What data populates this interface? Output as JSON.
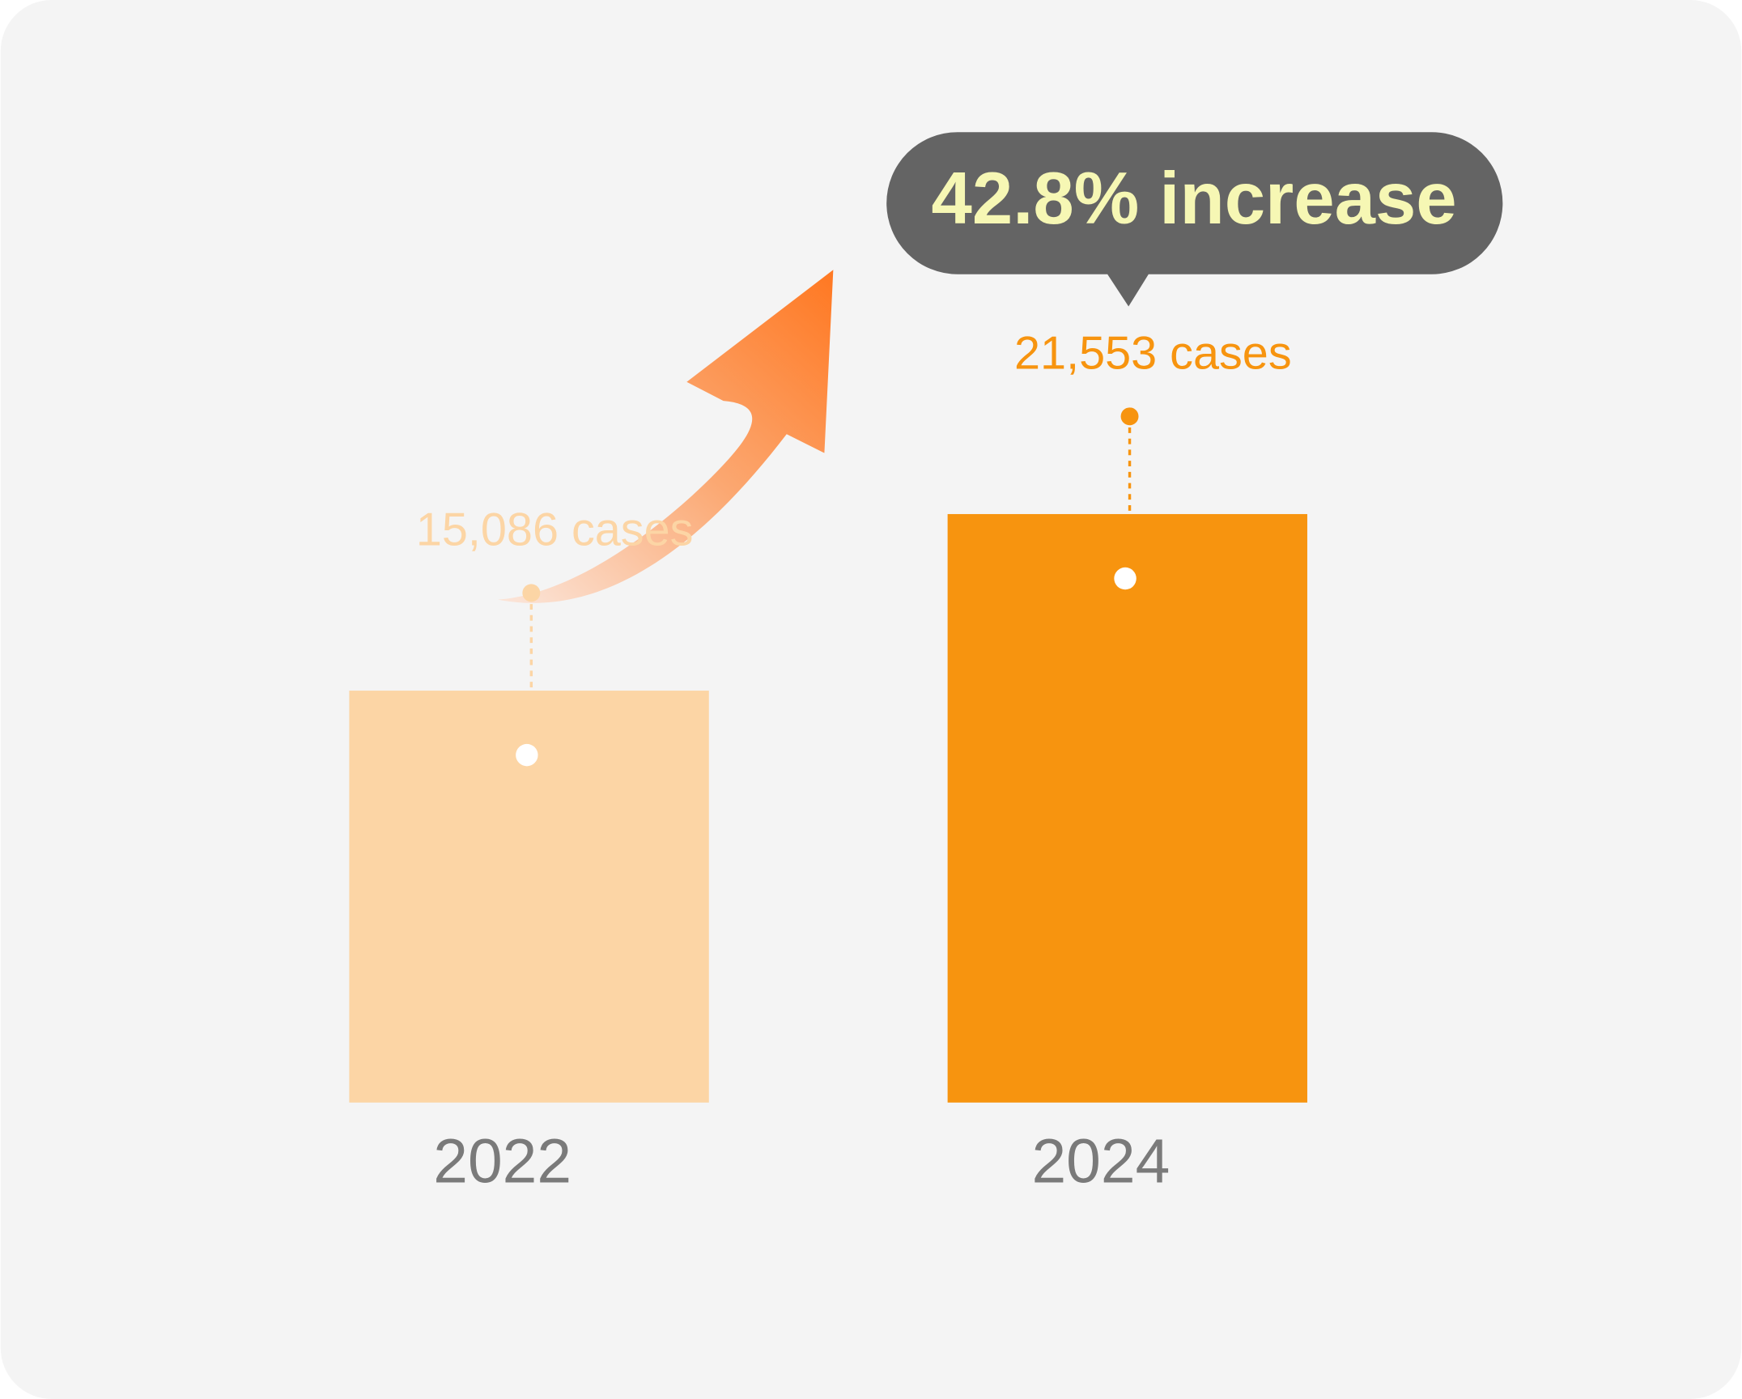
{
  "chart_data": {
    "type": "bar",
    "annotation": "42.8% increase",
    "categories": [
      "2022",
      "2024"
    ],
    "values": [
      15086,
      21553
    ],
    "value_labels": [
      "15,086 cases",
      "21,553 cases"
    ],
    "colors": [
      "#fcd5a5",
      "#f7940f"
    ]
  }
}
